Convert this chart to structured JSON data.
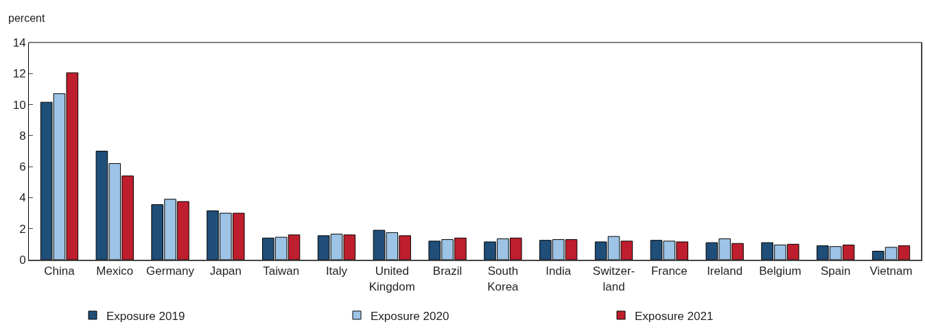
{
  "chart_data": {
    "type": "bar",
    "ylabel": "percent",
    "categories": [
      "China",
      "Mexico",
      "Germany",
      "Japan",
      "Taiwan",
      "Italy",
      "United\nKingdom",
      "Brazil",
      "South\nKorea",
      "India",
      "Switzer-\nland",
      "France",
      "Ireland",
      "Belgium",
      "Spain",
      "Vietnam"
    ],
    "series": [
      {
        "name": "Exposure 2019",
        "color": "#1f4e79",
        "values": [
          10.15,
          7.0,
          3.55,
          3.15,
          1.4,
          1.55,
          1.9,
          1.2,
          1.15,
          1.25,
          1.15,
          1.25,
          1.1,
          1.1,
          0.9,
          0.55
        ]
      },
      {
        "name": "Exposure 2020",
        "color": "#9dc3e6",
        "values": [
          10.7,
          6.2,
          3.9,
          3.0,
          1.45,
          1.65,
          1.75,
          1.3,
          1.35,
          1.3,
          1.5,
          1.2,
          1.35,
          0.95,
          0.85,
          0.8
        ]
      },
      {
        "name": "Exposure 2021",
        "color": "#be1e2d",
        "values": [
          12.05,
          5.4,
          3.75,
          3.0,
          1.6,
          1.6,
          1.55,
          1.4,
          1.4,
          1.3,
          1.2,
          1.15,
          1.05,
          1.0,
          0.95,
          0.9
        ]
      }
    ],
    "ylim": [
      0,
      14
    ],
    "yticks": [
      0,
      2,
      4,
      6,
      8,
      10,
      12,
      14
    ],
    "legend": "bottom"
  }
}
